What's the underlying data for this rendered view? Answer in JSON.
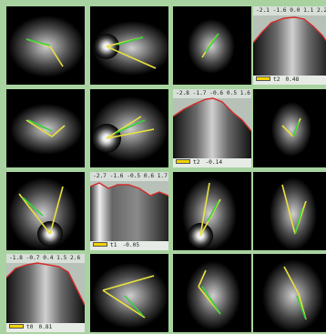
{
  "grid": {
    "background": "#a8d3a0",
    "line_colors": {
      "yellow": "#e9e23b",
      "green": "#35d43b",
      "red": "#d42a2a"
    }
  },
  "plots": {
    "p1": {
      "ticks": "-2.1 -1.6 0.0 1.1 2.2",
      "channel": "t2",
      "value": "0.48"
    },
    "p2": {
      "ticks": "-2.8 -1.7 -0.6 0.5 1.6",
      "channel": "t2",
      "value": "-0.14"
    },
    "p3": {
      "ticks": "-2.7 -1.6 -0.5 0.6 1.7",
      "channel": "t1",
      "value": "-0.05"
    },
    "p4": {
      "ticks": "-1.8 -0.7 0.4 1.5 2.6",
      "channel": "t0",
      "value": "0.81"
    }
  }
}
